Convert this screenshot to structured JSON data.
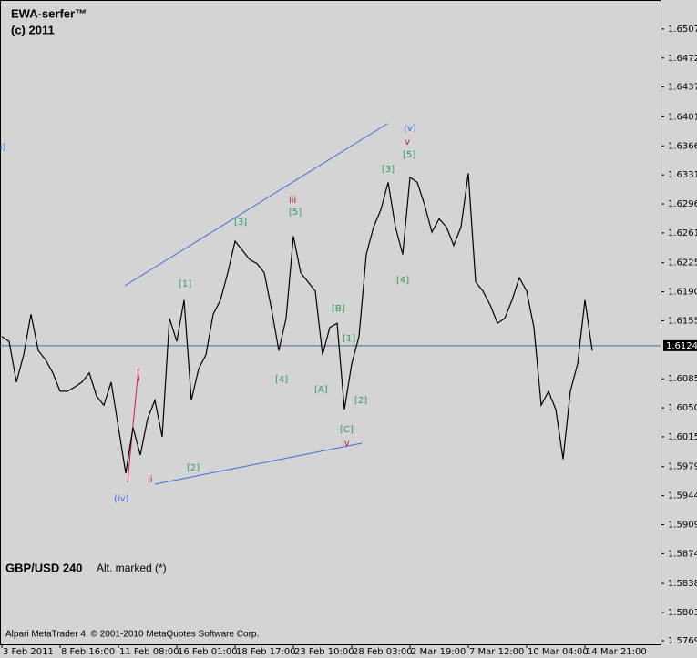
{
  "chart_data": {
    "type": "line",
    "title": "EWA-serfer™",
    "subtitle": "(c) 2011",
    "symbol": "GBP/USD 240",
    "note": "Alt. marked (*)",
    "footer": "Alpari MetaTrader 4, © 2001-2010 MetaQuotes Software Corp.",
    "current_price": 1.61249,
    "x": [
      0,
      2,
      4,
      6,
      8,
      10,
      12,
      14,
      16,
      18,
      20,
      22,
      24,
      26,
      28,
      30,
      32,
      34,
      36,
      38,
      40,
      42,
      44,
      46,
      48,
      50,
      52,
      54,
      56,
      58,
      60,
      62,
      64,
      66,
      68,
      70,
      72,
      74,
      76,
      78,
      80,
      82,
      84,
      86,
      88,
      90,
      92,
      94,
      96,
      98,
      100,
      102,
      104,
      106,
      108,
      110,
      112,
      114,
      116,
      118,
      120,
      122,
      124,
      126,
      128,
      130,
      132,
      134,
      136,
      138,
      140,
      142,
      144,
      146,
      148,
      150,
      152,
      154,
      156,
      158,
      160,
      162
    ],
    "series": [
      {
        "color": "#000000",
        "values": [
          1.6136,
          1.613,
          1.6081,
          1.6114,
          1.6163,
          1.6119,
          1.6108,
          1.6092,
          1.607,
          1.607,
          1.6075,
          1.6081,
          1.6092,
          1.6064,
          1.6053,
          1.6081,
          1.6026,
          1.5971,
          1.6026,
          1.5993,
          1.6037,
          1.6059,
          1.6015,
          1.6158,
          1.613,
          1.618,
          1.6059,
          1.6097,
          1.6114,
          1.6163,
          1.618,
          1.6213,
          1.6251,
          1.624,
          1.6229,
          1.6224,
          1.6213,
          1.6169,
          1.6119,
          1.6158,
          1.6257,
          1.6213,
          1.6202,
          1.6191,
          1.6114,
          1.6147,
          1.6152,
          1.6048,
          1.6103,
          1.6136,
          1.6235,
          1.6268,
          1.6289,
          1.6322,
          1.6268,
          1.6235,
          1.6328,
          1.6322,
          1.6295,
          1.6262,
          1.6278,
          1.6268,
          1.6246,
          1.6268,
          1.6333,
          1.6202,
          1.6191,
          1.6174,
          1.6152,
          1.6158,
          1.618,
          1.6207,
          1.6191,
          1.6147,
          1.6053,
          1.607,
          1.6048,
          1.5988,
          1.607,
          1.6103,
          1.618,
          1.6119
        ]
      }
    ],
    "xlim": [
      0,
      180.75
    ],
    "ylim": [
      1.57646,
      1.6542
    ],
    "xticks": [
      {
        "value": 0,
        "label": "3 Feb 2011"
      },
      {
        "value": 16,
        "label": "8 Feb 16:00"
      },
      {
        "value": 32,
        "label": "11 Feb 08:00"
      },
      {
        "value": 48,
        "label": "16 Feb 01:00"
      },
      {
        "value": 64,
        "label": "18 Feb 17:00"
      },
      {
        "value": 80,
        "label": "23 Feb 10:00"
      },
      {
        "value": 96,
        "label": "28 Feb 03:00"
      },
      {
        "value": 112,
        "label": "2 Mar 19:00"
      },
      {
        "value": 128,
        "label": "7 Mar 12:00"
      },
      {
        "value": 144,
        "label": "10 Mar 04:00"
      },
      {
        "value": 160,
        "label": "14 Mar 21:00"
      }
    ],
    "yticks": [
      {
        "value": 1.6507,
        "label": "1.65070"
      },
      {
        "value": 1.6472,
        "label": "1.64720"
      },
      {
        "value": 1.6437,
        "label": "1.64370"
      },
      {
        "value": 1.6401,
        "label": "1.64010"
      },
      {
        "value": 1.6366,
        "label": "1.63660"
      },
      {
        "value": 1.6331,
        "label": "1.63310"
      },
      {
        "value": 1.6296,
        "label": "1.62960"
      },
      {
        "value": 1.6261,
        "label": "1.62610"
      },
      {
        "value": 1.6225,
        "label": "1.62250"
      },
      {
        "value": 1.619,
        "label": "1.61900"
      },
      {
        "value": 1.6155,
        "label": "1.61550"
      },
      {
        "value": 1.6085,
        "label": "1.60850"
      },
      {
        "value": 1.605,
        "label": "1.60500"
      },
      {
        "value": 1.6015,
        "label": "1.60150"
      },
      {
        "value": 1.5979,
        "label": "1.59790"
      },
      {
        "value": 1.5944,
        "label": "1.59440"
      },
      {
        "value": 1.5909,
        "label": "1.59090"
      },
      {
        "value": 1.5874,
        "label": "1.58740"
      },
      {
        "value": 1.5838,
        "label": "1.58380"
      },
      {
        "value": 1.5803,
        "label": "1.58030"
      },
      {
        "value": 1.5769,
        "label": "1.57690"
      }
    ],
    "annotations": [
      {
        "text": "(v)",
        "color": "#4169e1"
      },
      {
        "text": "v",
        "color": "#b22222"
      },
      {
        "text": "[5]",
        "color": "#2e9e5b"
      },
      {
        "text": "[3]",
        "color": "#2e9e5b"
      },
      {
        "text": "iii",
        "color": "#b22222"
      },
      {
        "text": "[5]",
        "color": "#2e9e5b"
      },
      {
        "text": "[3]",
        "color": "#2e9e5b"
      },
      {
        "text": "[1]",
        "color": "#2e9e5b"
      },
      {
        "text": "[B]",
        "color": "#2e9e5b"
      },
      {
        "text": "[1]",
        "color": "#2e9e5b"
      },
      {
        "text": "[4]",
        "color": "#2e9e5b"
      },
      {
        "text": "[4]",
        "color": "#2e9e5b"
      },
      {
        "text": "[A]",
        "color": "#2e9e5b"
      },
      {
        "text": "[2]",
        "color": "#2e9e5b"
      },
      {
        "text": "[C]",
        "color": "#2e9e5b"
      },
      {
        "text": "iv",
        "color": "#b22222"
      },
      {
        "text": "[2]",
        "color": "#2e9e5b"
      },
      {
        "text": "ii",
        "color": "#b22222"
      },
      {
        "text": "i",
        "color": "#b22222"
      },
      {
        "text": "(iv)",
        "color": "#4169e1"
      },
      {
        "text": "ii)",
        "color": "#4169e1"
      }
    ]
  }
}
